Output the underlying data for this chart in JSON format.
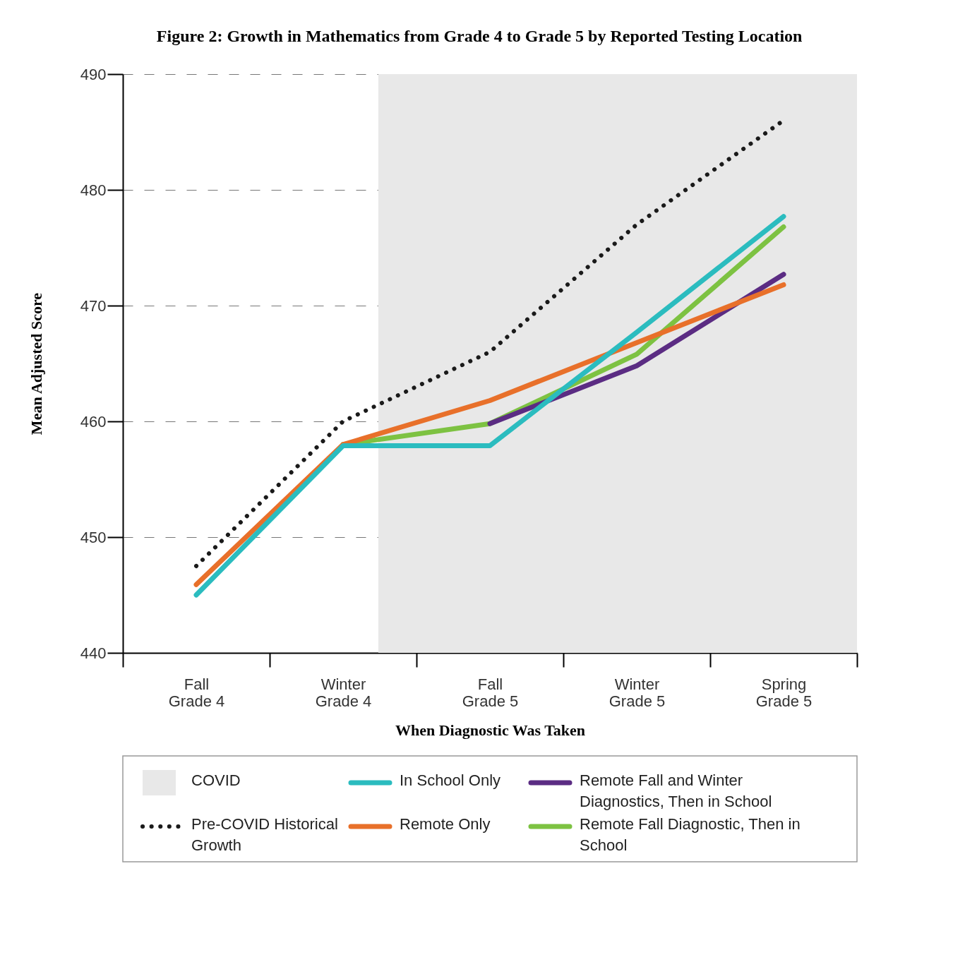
{
  "chart_data": {
    "type": "line",
    "title": "Figure 2: Growth in Mathematics from Grade 4 to Grade 5 by Reported Testing Location",
    "xlabel": "When Diagnostic Was Taken",
    "ylabel": "Mean Adjusted Score",
    "categories": [
      "Fall Grade 4",
      "Winter Grade 4",
      "Fall Grade 5",
      "Winter Grade 5",
      "Spring Grade 5"
    ],
    "series": [
      {
        "name": "Pre-COVID Historical Growth",
        "color": "#1a1a1a",
        "line_style": "dotted",
        "values": [
          447.5,
          460,
          466,
          477,
          486
        ]
      },
      {
        "name": "In School Only",
        "color": "#2bbcbf",
        "values": [
          445,
          457.9,
          457.9,
          467.7,
          477.7
        ]
      },
      {
        "name": "Remote Only",
        "color": "#e8702a",
        "values": [
          445.9,
          458,
          461.8,
          466.8,
          471.8
        ]
      },
      {
        "name": "Remote Fall and Winter Diagnostics, Then in School",
        "color": "#5b2c83",
        "values": [
          null,
          null,
          459.8,
          464.8,
          472.7
        ]
      },
      {
        "name": "Remote Fall Diagnostic, Then in School",
        "color": "#7dc242",
        "values": [
          null,
          458,
          459.8,
          465.8,
          476.8
        ]
      }
    ],
    "bands": [
      {
        "axis": "x",
        "from": "Winter Grade 4",
        "to": "Spring Grade 5",
        "label": "COVID",
        "color": "#e8e8e8"
      }
    ],
    "ylim": [
      440,
      490
    ],
    "yticks": [
      440,
      450,
      460,
      470,
      480,
      490
    ],
    "grid": "y",
    "legend": "bottom",
    "marker": "none",
    "line_style": "solid"
  }
}
